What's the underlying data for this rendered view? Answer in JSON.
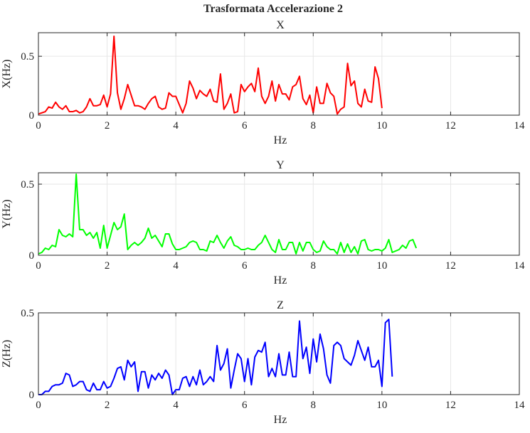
{
  "figure": {
    "title": "Trasformata Accelerazione 2"
  },
  "chart_data": [
    {
      "type": "line",
      "title": "X",
      "xlabel": "Hz",
      "ylabel": "X(Hz)",
      "xlim": [
        0,
        14
      ],
      "ylim": [
        0,
        0.7
      ],
      "xticks": [
        0,
        2,
        4,
        6,
        8,
        10,
        12,
        14
      ],
      "yticks": [
        0,
        0.5
      ],
      "ytick_labels": [
        "0",
        "0.5"
      ],
      "grid": true,
      "color": "#ff0000",
      "x_step": 0.1,
      "values": [
        0.01,
        0.02,
        0.03,
        0.07,
        0.06,
        0.11,
        0.07,
        0.05,
        0.08,
        0.03,
        0.03,
        0.04,
        0.02,
        0.03,
        0.07,
        0.14,
        0.08,
        0.08,
        0.09,
        0.17,
        0.07,
        0.18,
        0.67,
        0.19,
        0.05,
        0.14,
        0.26,
        0.17,
        0.08,
        0.08,
        0.07,
        0.05,
        0.1,
        0.14,
        0.16,
        0.07,
        0.05,
        0.06,
        0.19,
        0.16,
        0.16,
        0.09,
        0.02,
        0.1,
        0.29,
        0.23,
        0.14,
        0.21,
        0.18,
        0.16,
        0.22,
        0.12,
        0.11,
        0.35,
        0.05,
        0.1,
        0.18,
        0.02,
        0.03,
        0.26,
        0.2,
        0.24,
        0.27,
        0.2,
        0.4,
        0.16,
        0.1,
        0.16,
        0.29,
        0.12,
        0.26,
        0.18,
        0.18,
        0.13,
        0.24,
        0.26,
        0.33,
        0.14,
        0.09,
        0.17,
        0.02,
        0.24,
        0.1,
        0.1,
        0.27,
        0.19,
        0.16,
        0.01,
        0.05,
        0.07,
        0.44,
        0.25,
        0.29,
        0.1,
        0.07,
        0.22,
        0.12,
        0.11,
        0.41,
        0.31,
        0.06
      ]
    },
    {
      "type": "line",
      "title": "Y",
      "xlabel": "Hz",
      "ylabel": "Y(Hz)",
      "xlim": [
        0,
        14
      ],
      "ylim": [
        0,
        0.58
      ],
      "xticks": [
        0,
        2,
        4,
        6,
        8,
        10,
        12,
        14
      ],
      "yticks": [
        0,
        0.5
      ],
      "ytick_labels": [
        "0",
        "0.5"
      ],
      "grid": true,
      "color": "#00ff00",
      "x_step": 0.1,
      "values": [
        0.01,
        0.02,
        0.05,
        0.04,
        0.07,
        0.06,
        0.18,
        0.14,
        0.13,
        0.15,
        0.13,
        0.57,
        0.18,
        0.18,
        0.14,
        0.16,
        0.12,
        0.16,
        0.05,
        0.21,
        0.05,
        0.14,
        0.23,
        0.18,
        0.2,
        0.29,
        0.04,
        0.07,
        0.09,
        0.07,
        0.09,
        0.12,
        0.19,
        0.12,
        0.14,
        0.1,
        0.06,
        0.15,
        0.15,
        0.08,
        0.04,
        0.04,
        0.05,
        0.06,
        0.09,
        0.1,
        0.09,
        0.04,
        0.04,
        0.03,
        0.1,
        0.09,
        0.14,
        0.09,
        0.05,
        0.1,
        0.13,
        0.07,
        0.06,
        0.04,
        0.04,
        0.05,
        0.04,
        0.04,
        0.07,
        0.09,
        0.14,
        0.09,
        0.04,
        0.02,
        0.11,
        0.04,
        0.04,
        0.09,
        0.09,
        0.01,
        0.09,
        0.03,
        0.09,
        0.09,
        0.04,
        0.02,
        0.03,
        0.1,
        0.06,
        0.04,
        0.04,
        0.01,
        0.09,
        0.02,
        0.08,
        0.02,
        0.06,
        0.01,
        0.1,
        0.11,
        0.04,
        0.03,
        0.04,
        0.04,
        0.03,
        0.05,
        0.11,
        0.02,
        0.03,
        0.04,
        0.07,
        0.05,
        0.1,
        0.11,
        0.05
      ]
    },
    {
      "type": "line",
      "title": "Z",
      "xlabel": "Hz",
      "ylabel": "Z(Hz)",
      "xlim": [
        0,
        14
      ],
      "ylim": [
        0,
        0.5
      ],
      "xticks": [
        0,
        2,
        4,
        6,
        8,
        10,
        12,
        14
      ],
      "yticks": [
        0,
        0.5
      ],
      "ytick_labels": [
        "0",
        "0.5"
      ],
      "grid": true,
      "color": "#0000ff",
      "x_step": 0.1,
      "values": [
        0.0,
        0.0,
        0.02,
        0.02,
        0.05,
        0.06,
        0.06,
        0.07,
        0.13,
        0.12,
        0.05,
        0.06,
        0.08,
        0.08,
        0.03,
        0.02,
        0.07,
        0.03,
        0.03,
        0.08,
        0.04,
        0.05,
        0.1,
        0.16,
        0.17,
        0.09,
        0.21,
        0.17,
        0.2,
        0.02,
        0.14,
        0.14,
        0.04,
        0.12,
        0.09,
        0.13,
        0.1,
        0.15,
        0.12,
        0.0,
        0.03,
        0.03,
        0.1,
        0.11,
        0.05,
        0.11,
        0.06,
        0.15,
        0.06,
        0.08,
        0.11,
        0.08,
        0.3,
        0.15,
        0.19,
        0.28,
        0.04,
        0.15,
        0.25,
        0.22,
        0.08,
        0.22,
        0.06,
        0.23,
        0.27,
        0.26,
        0.32,
        0.11,
        0.16,
        0.11,
        0.25,
        0.12,
        0.12,
        0.26,
        0.11,
        0.11,
        0.45,
        0.22,
        0.29,
        0.13,
        0.34,
        0.2,
        0.37,
        0.28,
        0.12,
        0.07,
        0.3,
        0.32,
        0.3,
        0.22,
        0.2,
        0.18,
        0.24,
        0.33,
        0.27,
        0.21,
        0.29,
        0.17,
        0.17,
        0.21,
        0.05,
        0.44,
        0.46,
        0.11
      ]
    }
  ]
}
